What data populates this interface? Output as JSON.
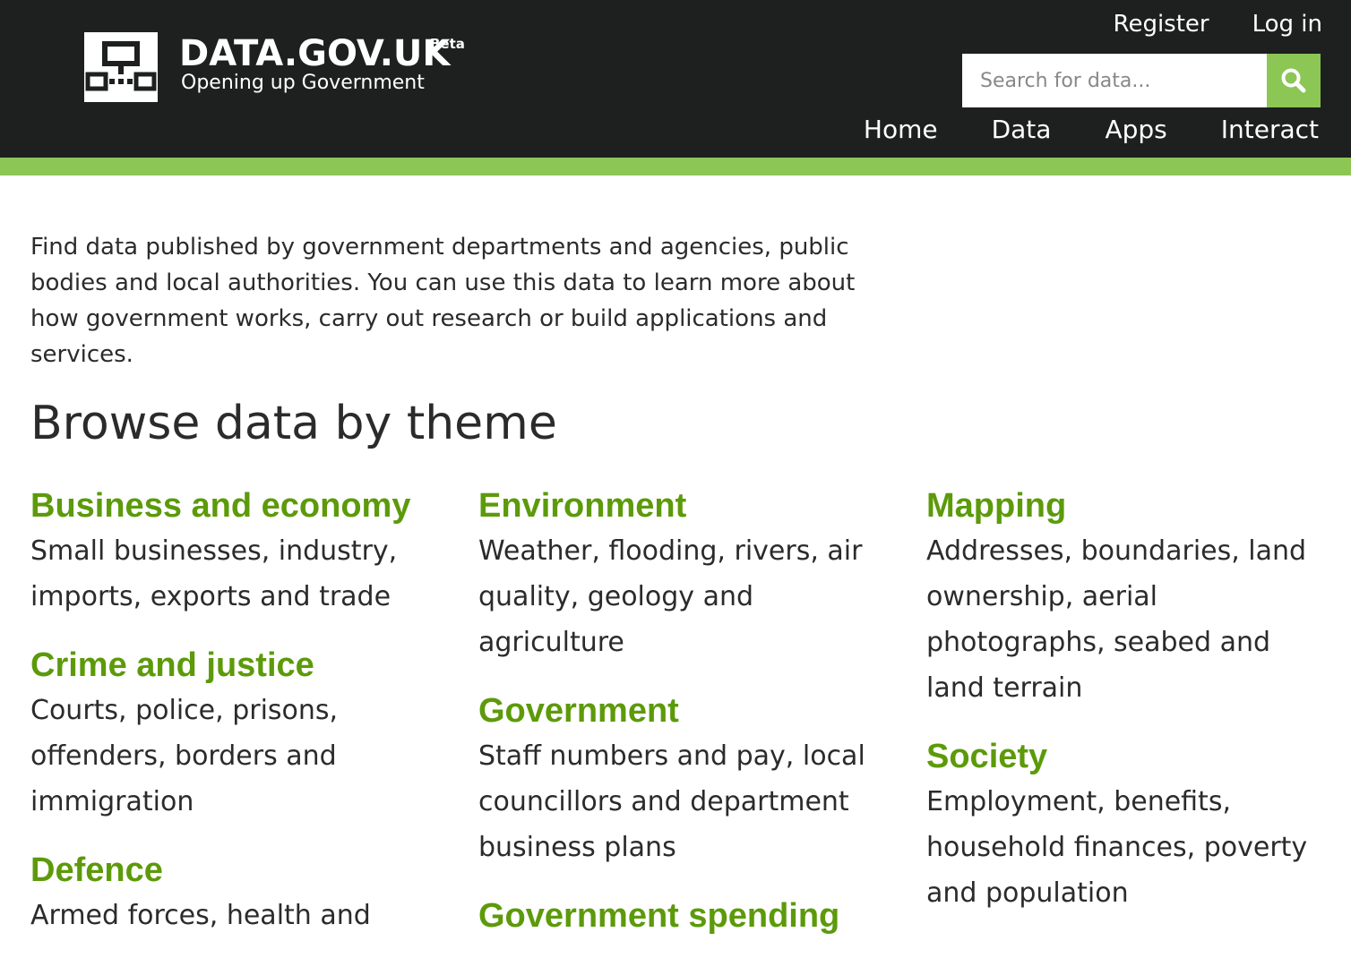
{
  "header": {
    "site_name": "DATA.GOV.UK",
    "beta_label": "Beta",
    "tagline": "Opening up Government",
    "top_links": {
      "register": "Register",
      "login": "Log in"
    },
    "search": {
      "placeholder": "Search for data..."
    },
    "nav": {
      "home": "Home",
      "data": "Data",
      "apps": "Apps",
      "interact": "Interact"
    }
  },
  "main": {
    "intro": "Find data published by government departments and agencies, public bodies and local authorities. You can use this data to learn more about how government works, carry out research or build applications and services.",
    "browse_title": "Browse data by theme",
    "themes": {
      "business": {
        "title": "Business and economy",
        "desc": "Small businesses, industry, imports, exports and trade"
      },
      "crime": {
        "title": "Crime and justice",
        "desc": "Courts, police, prisons, offenders, borders and immigration"
      },
      "defence": {
        "title": "Defence",
        "desc": "Armed forces, health and"
      },
      "environment": {
        "title": "Environment",
        "desc": "Weather, flooding, rivers, air quality, geology and agriculture"
      },
      "government": {
        "title": "Government",
        "desc": "Staff numbers and pay, local councillors and department business plans"
      },
      "gov_spending": {
        "title": "Government spending"
      },
      "mapping": {
        "title": "Mapping",
        "desc": "Addresses, boundaries, land ownership, aerial photographs, seabed and land terrain"
      },
      "society": {
        "title": "Society",
        "desc": "Employment, benefits, household finances, poverty and population"
      }
    }
  },
  "colors": {
    "header_bg": "#1e1f1f",
    "accent_green": "#8cc655",
    "theme_link": "#5c9a0a"
  },
  "icons": {
    "logo": "network-logo-icon",
    "search": "magnifier-icon"
  }
}
